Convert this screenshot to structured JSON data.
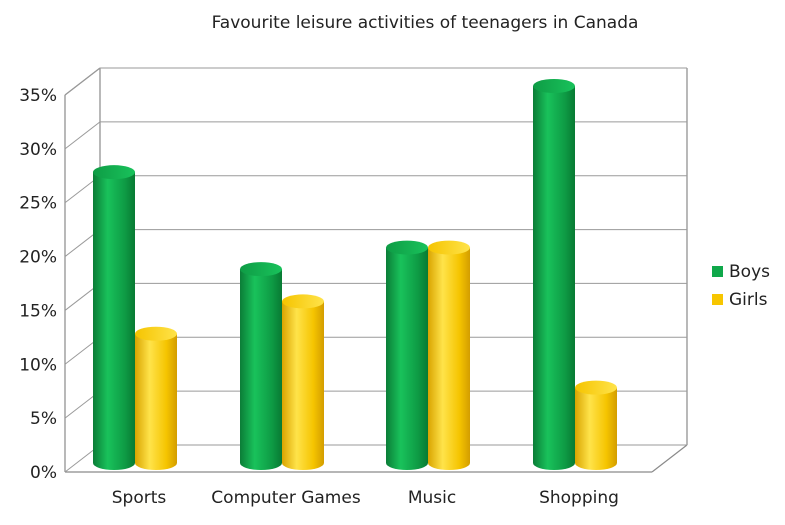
{
  "chart_data": {
    "type": "bar",
    "title": "Favourite leisure activities of teenagers in Canada",
    "xlabel": "",
    "ylabel": "",
    "categories": [
      "Sports",
      "Computer Games",
      "Music",
      "Shopping"
    ],
    "series": [
      {
        "name": "Boys",
        "color": "#0fa84a",
        "values": [
          27,
          18,
          20,
          35
        ]
      },
      {
        "name": "Girls",
        "color": "#f7c600",
        "values": [
          12,
          15,
          20,
          7
        ]
      }
    ],
    "ylim": [
      0,
      35
    ],
    "yticks": [
      "0%",
      "5%",
      "10%",
      "15%",
      "20%",
      "25%",
      "30%",
      "35%"
    ],
    "ytick_values": [
      0,
      5,
      10,
      15,
      20,
      25,
      30,
      35
    ],
    "grid": true,
    "legend_position": "right",
    "style": "3d-cylinder"
  }
}
